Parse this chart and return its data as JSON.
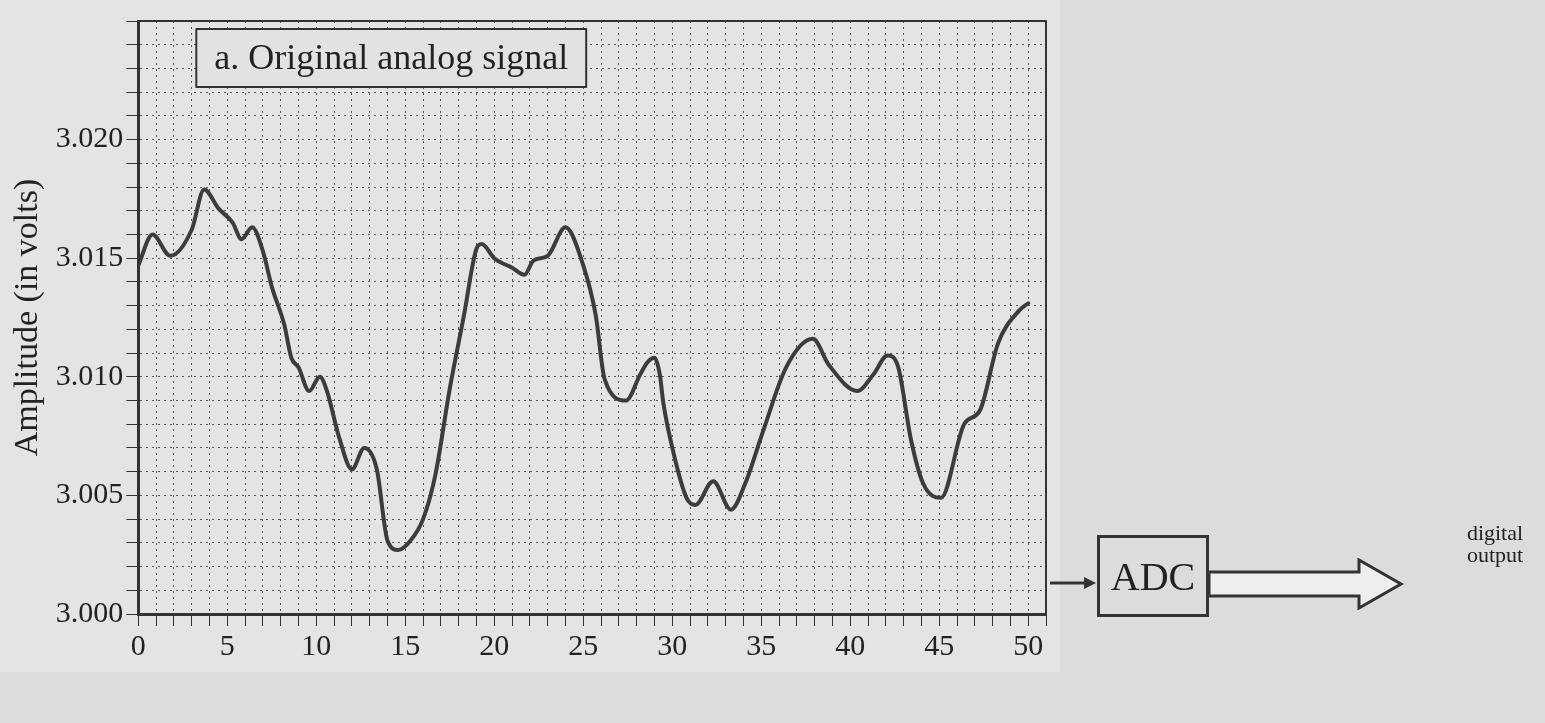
{
  "chart_data": {
    "type": "line",
    "title": "a. Original analog signal",
    "ylabel": "Amplitude (in volts)",
    "x": [
      0,
      0.8,
      1.8,
      3,
      3.7,
      4.5,
      5.3,
      5.8,
      6.4,
      7,
      7.5,
      8.2,
      8.6,
      9,
      9.6,
      10.2,
      10.6,
      11.3,
      12,
      12.7,
      13.4,
      14,
      14.6,
      15.3,
      16,
      16.7,
      17.5,
      18.3,
      19,
      19.3,
      20,
      21,
      21.7,
      22.2,
      23,
      24,
      25,
      25.7,
      26.2,
      27.4,
      28.2,
      28.6,
      29,
      29.3,
      29.5,
      30.1,
      30.8,
      31.3,
      32.3,
      33.3,
      34.1,
      35.1,
      36.4,
      37.9,
      38.8,
      40.4,
      41.3,
      42.1,
      42.7,
      43.4,
      44.1,
      45.1,
      46.4,
      47.3,
      48.3,
      49.5,
      50
    ],
    "series": [
      {
        "color": "#3c3c3c",
        "values": [
          3.0147,
          3.016,
          3.0151,
          3.0162,
          3.0179,
          3.0171,
          3.0165,
          3.0158,
          3.0163,
          3.0153,
          3.0138,
          3.0122,
          3.0108,
          3.0104,
          3.0094,
          3.01,
          3.0094,
          3.0074,
          3.0061,
          3.007,
          3.0061,
          3.0031,
          3.0027,
          3.0031,
          3.004,
          3.0059,
          3.0095,
          3.0126,
          3.0154,
          3.0156,
          3.015,
          3.0146,
          3.0143,
          3.0149,
          3.0151,
          3.0163,
          3.0147,
          3.0126,
          3.0099,
          3.009,
          3.0101,
          3.0106,
          3.0108,
          3.0101,
          3.0089,
          3.0067,
          3.0049,
          3.0046,
          3.0056,
          3.0044,
          3.0055,
          3.0077,
          3.0104,
          3.0116,
          3.0105,
          3.0094,
          3.0101,
          3.0109,
          3.0104,
          3.0074,
          3.0055,
          3.0049,
          3.008,
          3.0086,
          3.0114,
          3.0128,
          3.0131
        ]
      }
    ],
    "xlim": [
      0,
      51
    ],
    "ylim": [
      3.0,
      3.025
    ],
    "xticks": [
      0,
      {
        "value": 1,
        "label": null
      },
      {
        "value": 2,
        "label": null
      },
      {
        "value": 3,
        "label": null
      },
      {
        "value": 4,
        "label": null
      },
      5,
      {
        "value": 6,
        "label": null
      },
      {
        "value": 7,
        "label": null
      },
      {
        "value": 8,
        "label": null
      },
      {
        "value": 9,
        "label": null
      },
      10,
      {
        "value": 11,
        "label": null
      },
      {
        "value": 12,
        "label": null
      },
      {
        "value": 13,
        "label": null
      },
      {
        "value": 14,
        "label": null
      },
      15,
      {
        "value": 16,
        "label": null
      },
      {
        "value": 17,
        "label": null
      },
      {
        "value": 18,
        "label": null
      },
      {
        "value": 19,
        "label": null
      },
      20,
      {
        "value": 21,
        "label": null
      },
      {
        "value": 22,
        "label": null
      },
      {
        "value": 23,
        "label": null
      },
      {
        "value": 24,
        "label": null
      },
      25,
      {
        "value": 26,
        "label": null
      },
      {
        "value": 27,
        "label": null
      },
      {
        "value": 28,
        "label": null
      },
      {
        "value": 29,
        "label": null
      },
      30,
      {
        "value": 31,
        "label": null
      },
      {
        "value": 32,
        "label": null
      },
      {
        "value": 33,
        "label": null
      },
      {
        "value": 34,
        "label": null
      },
      35,
      {
        "value": 36,
        "label": null
      },
      {
        "value": 37,
        "label": null
      },
      {
        "value": 38,
        "label": null
      },
      {
        "value": 39,
        "label": null
      },
      40,
      {
        "value": 41,
        "label": null
      },
      {
        "value": 42,
        "label": null
      },
      {
        "value": 43,
        "label": null
      },
      {
        "value": 44,
        "label": null
      },
      45,
      {
        "value": 46,
        "label": null
      },
      {
        "value": 47,
        "label": null
      },
      {
        "value": 48,
        "label": null
      },
      {
        "value": 49,
        "label": null
      },
      50,
      {
        "value": 51,
        "label": null
      }
    ],
    "yticks": [
      {
        "value": 3.0,
        "label": "3.000"
      },
      {
        "value": 3.001,
        "label": null
      },
      {
        "value": 3.002,
        "label": null
      },
      {
        "value": 3.003,
        "label": null
      },
      {
        "value": 3.004,
        "label": null
      },
      {
        "value": 3.005,
        "label": "3.005"
      },
      {
        "value": 3.006,
        "label": null
      },
      {
        "value": 3.007,
        "label": null
      },
      {
        "value": 3.008,
        "label": null
      },
      {
        "value": 3.009,
        "label": null
      },
      {
        "value": 3.01,
        "label": "3.010"
      },
      {
        "value": 3.011,
        "label": null
      },
      {
        "value": 3.012,
        "label": null
      },
      {
        "value": 3.013,
        "label": null
      },
      {
        "value": 3.014,
        "label": null
      },
      {
        "value": 3.015,
        "label": "3.015"
      },
      {
        "value": 3.016,
        "label": null
      },
      {
        "value": 3.017,
        "label": null
      },
      {
        "value": 3.018,
        "label": null
      },
      {
        "value": 3.019,
        "label": null
      },
      {
        "value": 3.02,
        "label": "3.020"
      },
      {
        "value": 3.021,
        "label": null
      },
      {
        "value": 3.022,
        "label": null
      },
      {
        "value": 3.023,
        "label": null
      },
      {
        "value": 3.024,
        "label": null
      },
      {
        "value": 3.025,
        "label": null
      }
    ],
    "grid": true,
    "legend": false,
    "marker": "none",
    "line_style": "solid",
    "annotations": [
      "ADC",
      "digital output"
    ]
  }
}
